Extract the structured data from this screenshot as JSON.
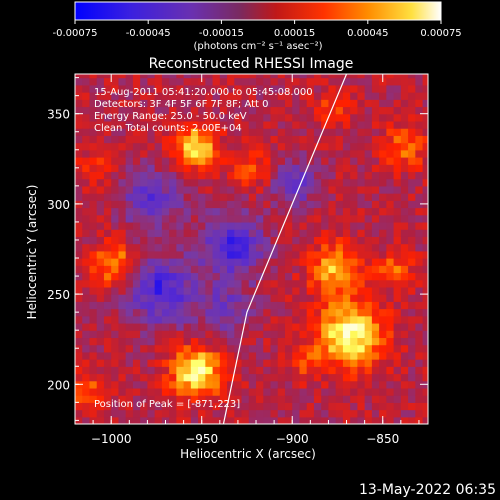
{
  "colorbar": {
    "tick_labels": [
      "-0.00075",
      "-0.00045",
      "-0.00015",
      "0.00015",
      "0.00045",
      "0.00075"
    ],
    "unit_label": "(photons cm⁻² s⁻¹ asec⁻²)",
    "range": [
      -0.00075,
      0.00075
    ]
  },
  "plot": {
    "title": "Reconstructed RHESSI Image",
    "xlabel": "Heliocentric X (arcsec)",
    "ylabel": "Heliocentric Y (arcsec)",
    "annotations": {
      "time": "15-Aug-2011 05:41:20.000 to 05:45:08.000",
      "detectors": "Detectors: 3F 4F 5F 6F 7F 8F; Att 0",
      "energy": "Energy Range: 25.0 - 50.0 keV",
      "method": "Clean    Total counts: 2.00E+04",
      "peak": "Position of Peak = [-871,223]"
    }
  },
  "chart_data": {
    "type": "heatmap",
    "title": "Reconstructed RHESSI Image",
    "xlabel": "Heliocentric X (arcsec)",
    "ylabel": "Heliocentric Y (arcsec)",
    "xlim": [
      -1020,
      -825
    ],
    "ylim": [
      178,
      372
    ],
    "xticks": [
      -1000,
      -950,
      -900,
      -850
    ],
    "yticks": [
      200,
      250,
      300,
      350
    ],
    "colorbar_range": [
      -0.00075,
      0.00075
    ],
    "colormap": [
      "#0000ff",
      "#5a2ccf",
      "#7a3aa0",
      "#b02040",
      "#ff2000",
      "#ff8c00",
      "#ffff60",
      "#ffffff"
    ],
    "limb_arc": [
      [
        -938,
        178
      ],
      [
        -925,
        240
      ],
      [
        -900,
        300
      ],
      [
        -870,
        372
      ]
    ],
    "blobs": [
      {
        "x": -870,
        "y": 226,
        "amp": 0.00075,
        "r": 18
      },
      {
        "x": -878,
        "y": 262,
        "amp": 0.0005,
        "r": 14
      },
      {
        "x": -955,
        "y": 205,
        "amp": 0.0007,
        "r": 14
      },
      {
        "x": -955,
        "y": 330,
        "amp": 0.0006,
        "r": 12
      },
      {
        "x": -925,
        "y": 318,
        "amp": 0.0003,
        "r": 10
      },
      {
        "x": -1000,
        "y": 265,
        "amp": 0.00045,
        "r": 12
      },
      {
        "x": -1010,
        "y": 320,
        "amp": 0.0002,
        "r": 10
      },
      {
        "x": -845,
        "y": 262,
        "amp": 0.0003,
        "r": 10
      },
      {
        "x": -840,
        "y": 330,
        "amp": 0.00035,
        "r": 12
      },
      {
        "x": -895,
        "y": 210,
        "amp": 0.0002,
        "r": 10
      },
      {
        "x": -1015,
        "y": 195,
        "amp": 0.0003,
        "r": 10
      },
      {
        "x": -880,
        "y": 350,
        "amp": 0.00025,
        "r": 10
      },
      {
        "x": -975,
        "y": 250,
        "amp": -0.0005,
        "r": 18
      },
      {
        "x": -935,
        "y": 275,
        "amp": -0.00045,
        "r": 18
      },
      {
        "x": -980,
        "y": 300,
        "amp": -0.0004,
        "r": 16
      },
      {
        "x": -900,
        "y": 310,
        "amp": -0.0004,
        "r": 12
      },
      {
        "x": -940,
        "y": 240,
        "amp": -0.0003,
        "r": 14
      }
    ]
  },
  "footer": {
    "date": "13-May-2022 06:35"
  }
}
